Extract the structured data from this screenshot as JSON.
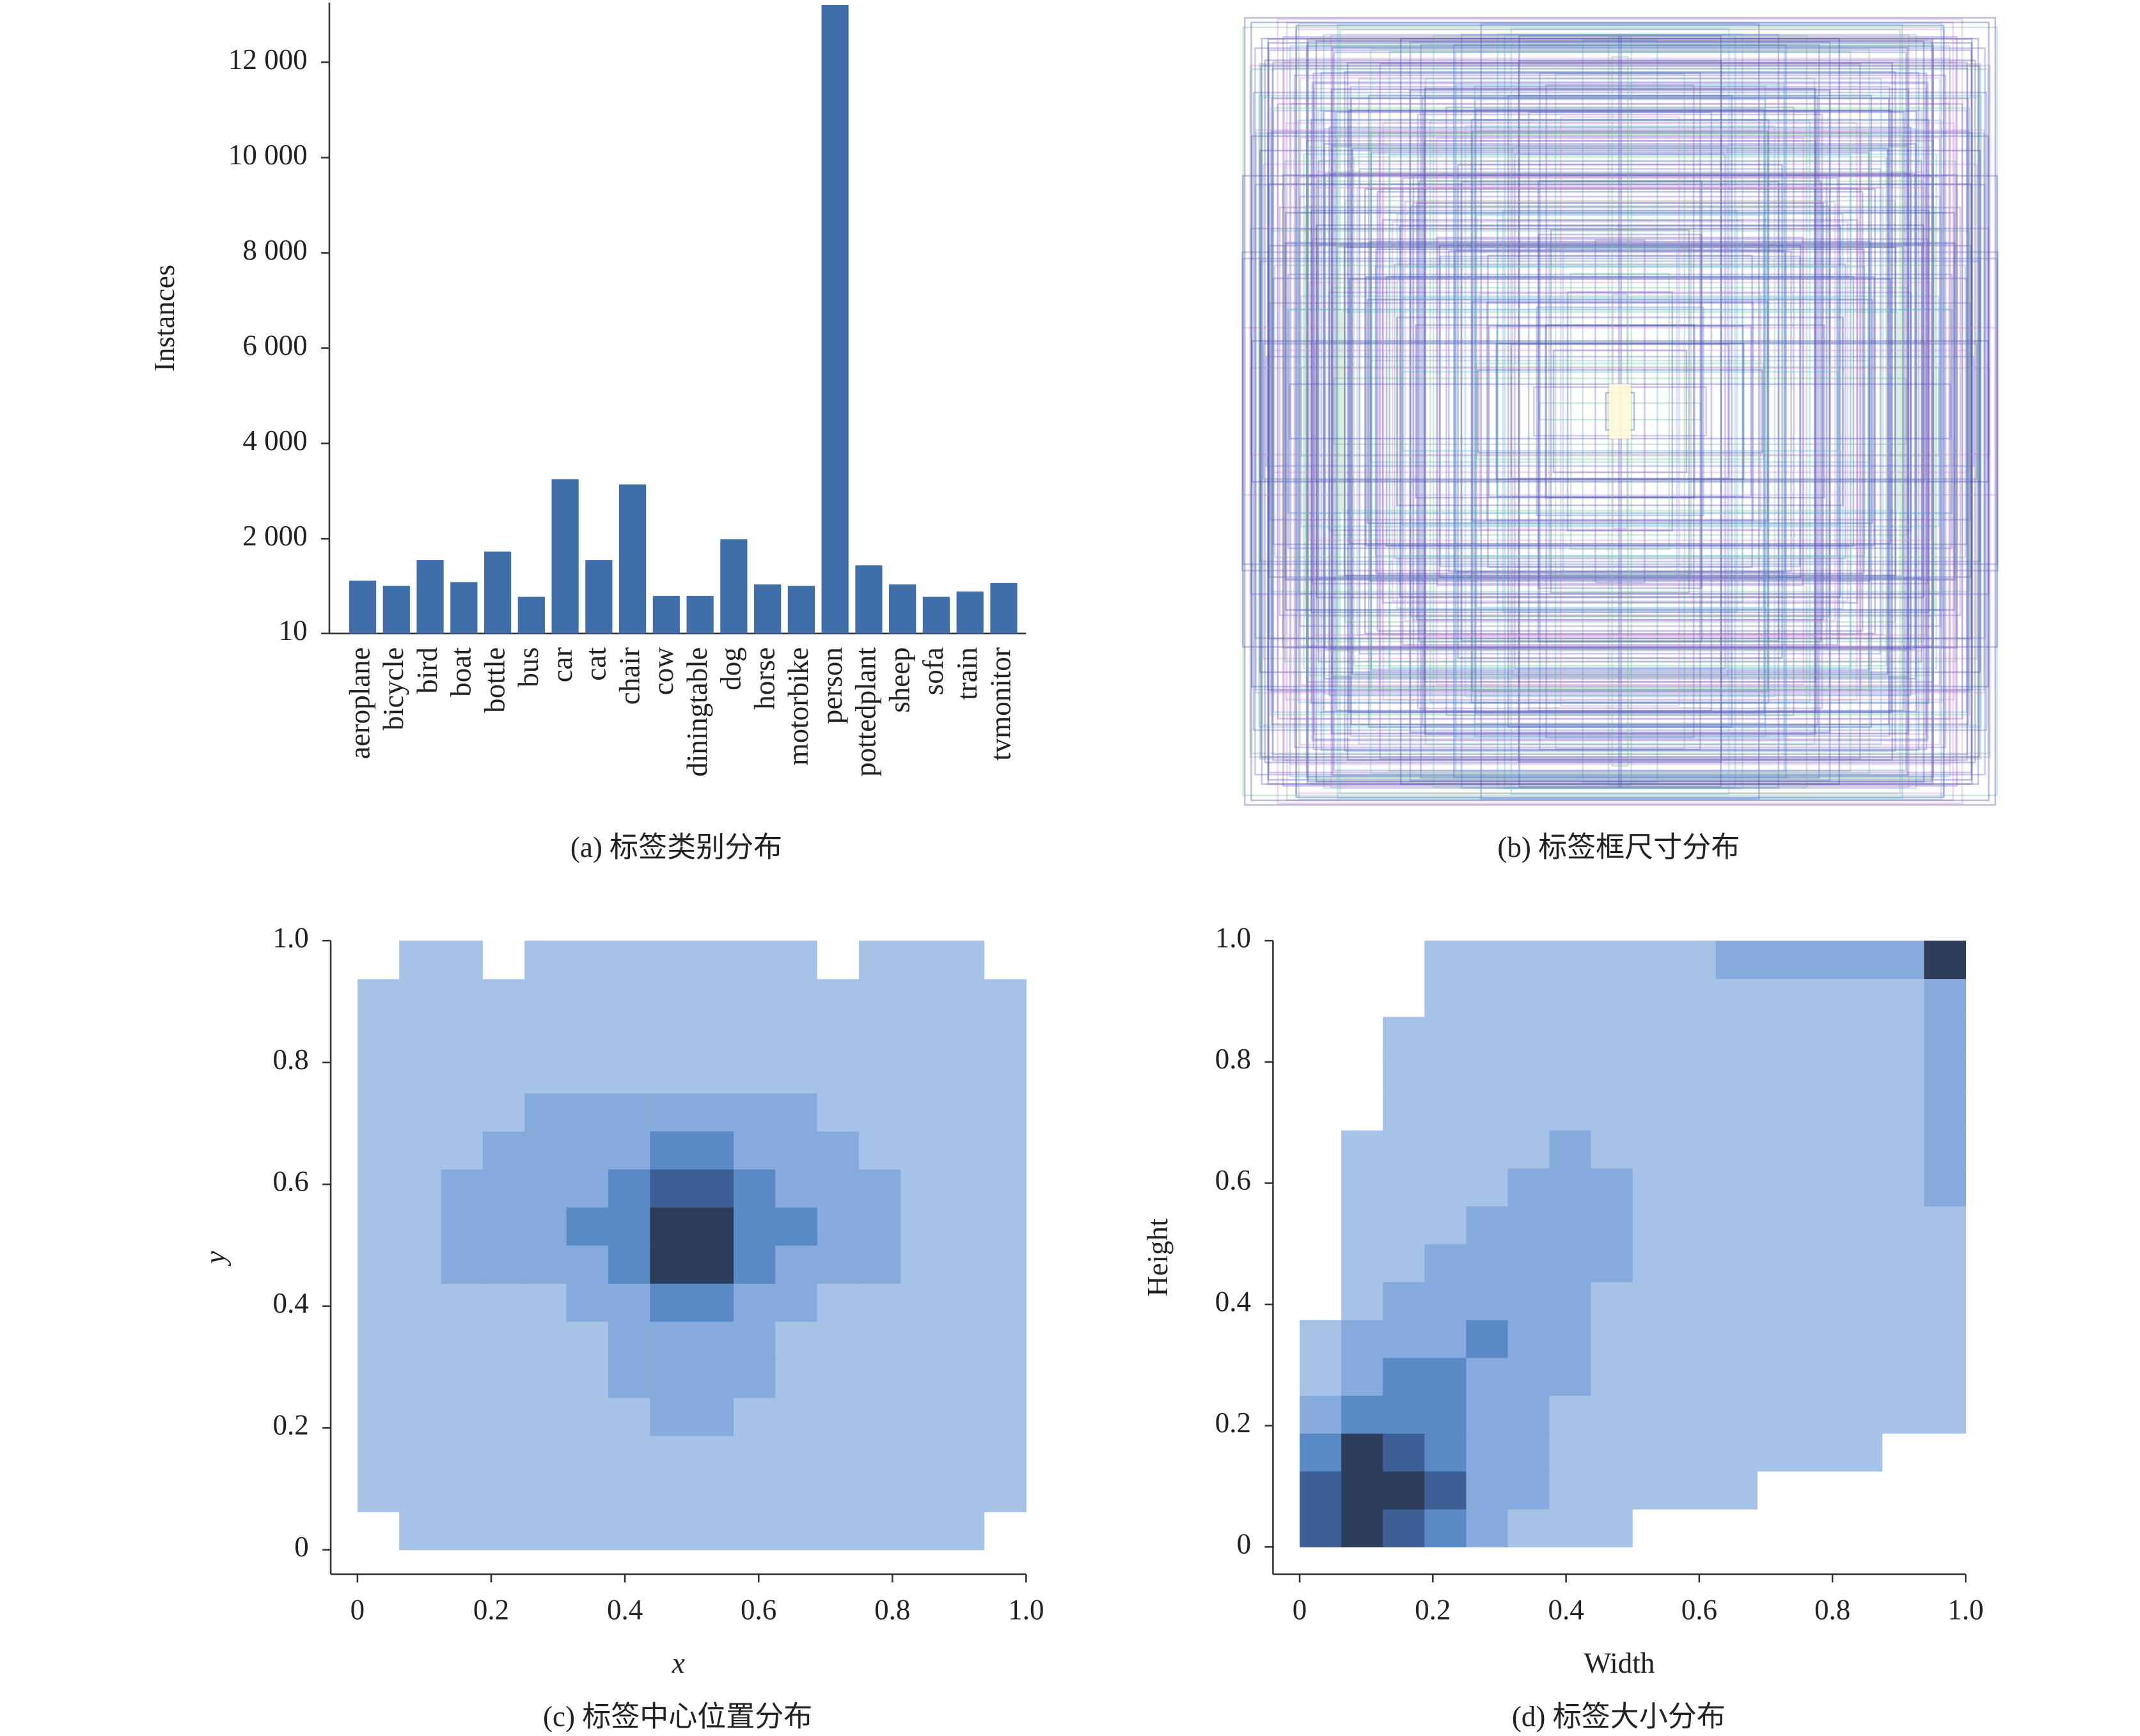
{
  "chart_data": [
    {
      "type": "bar",
      "ylabel": "Instances",
      "caption": "(a) 标签类别分布",
      "color": "#3f6ea8",
      "categories": [
        "aeroplane",
        "bicycle",
        "bird",
        "boat",
        "bottle",
        "bus",
        "car",
        "cat",
        "chair",
        "cow",
        "diningtable",
        "dog",
        "horse",
        "motorbike",
        "person",
        "pottedplant",
        "sheep",
        "sofa",
        "train",
        "tvmonitor"
      ],
      "values": [
        1120,
        1010,
        1550,
        1090,
        1730,
        780,
        3250,
        1550,
        3140,
        800,
        800,
        1990,
        1040,
        1010,
        13200,
        1440,
        1040,
        780,
        890,
        1070
      ],
      "ylim": [
        10,
        13250
      ],
      "yticks": [
        10,
        {
          "value": 2000,
          "label": "2 000"
        },
        {
          "value": 4000,
          "label": "4 000"
        },
        {
          "value": 6000,
          "label": "6 000"
        },
        {
          "value": 8000,
          "label": "8 000"
        },
        {
          "value": 10000,
          "label": "10 000"
        },
        {
          "value": 12000,
          "label": "12 000"
        }
      ]
    },
    {
      "type": "boxes",
      "caption": "(b) 标签框尺寸分布"
    },
    {
      "type": "heatmap",
      "xlabel": "x",
      "ylabel": "y",
      "caption": "(c) 标签中心位置分布",
      "xlim": [
        -0.04,
        1.0
      ],
      "ylim": [
        -0.04,
        1.0
      ],
      "xticks": [
        0,
        0.2,
        0.4,
        0.6,
        0.8,
        {
          "value": 1,
          "label": "1.0"
        }
      ],
      "yticks": [
        0,
        0.2,
        0.4,
        0.6,
        0.8,
        {
          "value": 1,
          "label": "1.0"
        }
      ],
      "colors": [
        "#ffffff",
        "#a6c2e6",
        "#86aadb",
        "#5a8ac6",
        "#3d5f95",
        "#2c3e5c"
      ],
      "xbins": [
        0,
        0.0625,
        0.125,
        0.1875,
        0.25,
        0.3125,
        0.375,
        0.4375,
        0.5,
        0.5625,
        0.625,
        0.6875,
        0.75,
        0.8125,
        0.875,
        0.9375,
        1
      ],
      "ybins": [
        0,
        0.0625,
        0.125,
        0.1875,
        0.25,
        0.3125,
        0.375,
        0.4375,
        0.5,
        0.5625,
        0.625,
        0.6875,
        0.75,
        0.8125,
        0.875,
        0.9375,
        1
      ],
      "z": [
        [
          0,
          1,
          1,
          1,
          1,
          1,
          1,
          1,
          1,
          1,
          1,
          1,
          1,
          1,
          1,
          0
        ],
        [
          1,
          1,
          1,
          1,
          1,
          1,
          1,
          1,
          1,
          1,
          1,
          1,
          1,
          1,
          1,
          1
        ],
        [
          1,
          1,
          1,
          1,
          1,
          1,
          1,
          1,
          1,
          1,
          1,
          1,
          1,
          1,
          1,
          1
        ],
        [
          1,
          1,
          1,
          1,
          1,
          1,
          1,
          2,
          2,
          1,
          1,
          1,
          1,
          1,
          1,
          1
        ],
        [
          1,
          1,
          1,
          1,
          1,
          1,
          2,
          2,
          2,
          2,
          1,
          1,
          1,
          1,
          1,
          1
        ],
        [
          1,
          1,
          1,
          1,
          1,
          1,
          2,
          2,
          2,
          2,
          1,
          1,
          1,
          1,
          1,
          1
        ],
        [
          1,
          1,
          1,
          1,
          1,
          2,
          2,
          3,
          3,
          2,
          2,
          1,
          1,
          1,
          1,
          1
        ],
        [
          1,
          1,
          2,
          2,
          2,
          2,
          3,
          5,
          5,
          3,
          2,
          2,
          2,
          1,
          1,
          1
        ],
        [
          1,
          1,
          2,
          2,
          2,
          3,
          3,
          5,
          5,
          3,
          3,
          2,
          2,
          1,
          1,
          1
        ],
        [
          1,
          1,
          2,
          2,
          2,
          2,
          3,
          4,
          4,
          3,
          2,
          2,
          2,
          1,
          1,
          1
        ],
        [
          1,
          1,
          1,
          2,
          2,
          2,
          2,
          3,
          3,
          2,
          2,
          2,
          1,
          1,
          1,
          1
        ],
        [
          1,
          1,
          1,
          1,
          2,
          2,
          2,
          2,
          2,
          2,
          2,
          1,
          1,
          1,
          1,
          1
        ],
        [
          1,
          1,
          1,
          1,
          1,
          1,
          1,
          1,
          1,
          1,
          1,
          1,
          1,
          1,
          1,
          1
        ],
        [
          1,
          1,
          1,
          1,
          1,
          1,
          1,
          1,
          1,
          1,
          1,
          1,
          1,
          1,
          1,
          1
        ],
        [
          1,
          1,
          1,
          1,
          1,
          1,
          1,
          1,
          1,
          1,
          1,
          1,
          1,
          1,
          1,
          1
        ],
        [
          0,
          1,
          1,
          0,
          1,
          1,
          1,
          1,
          1,
          1,
          1,
          0,
          1,
          1,
          1,
          0
        ]
      ]
    },
    {
      "type": "heatmap",
      "xlabel": "Width",
      "ylabel": "Height",
      "caption": "(d) 标签大小分布",
      "xlim": [
        -0.04,
        1.0
      ],
      "ylim": [
        -0.045,
        1.0
      ],
      "xticks": [
        0,
        0.2,
        0.4,
        0.6,
        0.8,
        {
          "value": 1,
          "label": "1.0"
        }
      ],
      "yticks": [
        0,
        0.2,
        0.4,
        0.6,
        0.8,
        {
          "value": 1,
          "label": "1.0"
        }
      ],
      "colors": [
        "#ffffff",
        "#a6c2e6",
        "#86aadb",
        "#5a8ac6",
        "#3d5f95",
        "#2c3e5c"
      ],
      "xbins": [
        0,
        0.0625,
        0.125,
        0.1875,
        0.25,
        0.3125,
        0.375,
        0.4375,
        0.5,
        0.5625,
        0.625,
        0.6875,
        0.75,
        0.8125,
        0.875,
        0.9375,
        1
      ],
      "ybins": [
        0,
        0.0625,
        0.125,
        0.1875,
        0.25,
        0.3125,
        0.375,
        0.4375,
        0.5,
        0.5625,
        0.625,
        0.6875,
        0.75,
        0.8125,
        0.875,
        0.9375,
        1
      ],
      "z": [
        [
          4,
          5,
          4,
          3,
          2,
          1,
          1,
          1,
          0,
          0,
          0,
          0,
          0,
          0,
          0,
          0
        ],
        [
          4,
          5,
          5,
          4,
          2,
          2,
          1,
          1,
          1,
          1,
          1,
          0,
          0,
          0,
          0,
          0
        ],
        [
          3,
          5,
          4,
          3,
          2,
          2,
          1,
          1,
          1,
          1,
          1,
          1,
          1,
          1,
          0,
          0
        ],
        [
          2,
          3,
          3,
          3,
          2,
          2,
          1,
          1,
          1,
          1,
          1,
          1,
          1,
          1,
          1,
          1
        ],
        [
          1,
          2,
          3,
          3,
          2,
          2,
          2,
          1,
          1,
          1,
          1,
          1,
          1,
          1,
          1,
          1
        ],
        [
          1,
          2,
          2,
          2,
          3,
          2,
          2,
          1,
          1,
          1,
          1,
          1,
          1,
          1,
          1,
          1
        ],
        [
          0,
          1,
          2,
          2,
          2,
          2,
          2,
          1,
          1,
          1,
          1,
          1,
          1,
          1,
          1,
          1
        ],
        [
          0,
          1,
          1,
          2,
          2,
          2,
          2,
          2,
          1,
          1,
          1,
          1,
          1,
          1,
          1,
          1
        ],
        [
          0,
          1,
          1,
          1,
          2,
          2,
          2,
          2,
          1,
          1,
          1,
          1,
          1,
          1,
          1,
          1
        ],
        [
          0,
          1,
          1,
          1,
          1,
          2,
          2,
          2,
          1,
          1,
          1,
          1,
          1,
          1,
          1,
          2
        ],
        [
          0,
          1,
          1,
          1,
          1,
          1,
          2,
          1,
          1,
          1,
          1,
          1,
          1,
          1,
          1,
          2
        ],
        [
          0,
          0,
          1,
          1,
          1,
          1,
          1,
          1,
          1,
          1,
          1,
          1,
          1,
          1,
          1,
          2
        ],
        [
          0,
          0,
          1,
          1,
          1,
          1,
          1,
          1,
          1,
          1,
          1,
          1,
          1,
          1,
          1,
          2
        ],
        [
          0,
          0,
          1,
          1,
          1,
          1,
          1,
          1,
          1,
          1,
          1,
          1,
          1,
          1,
          1,
          2
        ],
        [
          0,
          0,
          0,
          1,
          1,
          1,
          1,
          1,
          1,
          1,
          1,
          1,
          1,
          1,
          1,
          2
        ],
        [
          0,
          0,
          0,
          1,
          1,
          1,
          1,
          1,
          1,
          1,
          2,
          2,
          2,
          2,
          2,
          5
        ]
      ]
    }
  ]
}
